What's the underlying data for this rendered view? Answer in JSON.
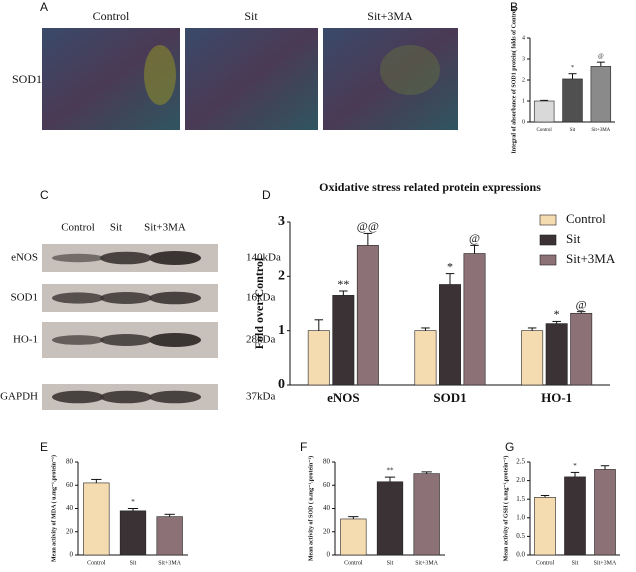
{
  "panel_letters": [
    "A",
    "B",
    "C",
    "D",
    "E",
    "F",
    "G"
  ],
  "panel_a": {
    "columns": [
      "Control",
      "Sit",
      "Sit+3MA"
    ],
    "rows": [
      "SOD1"
    ]
  },
  "panel_c": {
    "columns": [
      "Control",
      "Sit",
      "Sit+3MA"
    ],
    "rows": [
      {
        "name": "eNOS",
        "size": "140kDa"
      },
      {
        "name": "SOD1",
        "size": "16kDa"
      },
      {
        "name": "HO-1",
        "size": "28kDa"
      },
      {
        "name": "GAPDH",
        "size": "37kDa"
      }
    ]
  },
  "chart_data": [
    {
      "type": "bar",
      "ylabel": "Integral of absorbance of SOD1 protein( folds of Control)",
      "categories": [
        "Control",
        "Sit",
        "Sit+3MA"
      ],
      "values": [
        1,
        2.05,
        2.65
      ],
      "errors": [
        0.03,
        0.25,
        0.2
      ],
      "annotations": [
        null,
        "*",
        "@"
      ],
      "colors": [
        "#d9d9d9",
        "#505050",
        "#8a8a8a"
      ],
      "ylim": [
        0,
        4
      ],
      "yticks": [
        0,
        1,
        2,
        3,
        4
      ]
    },
    {
      "type": "grouped_bar",
      "title": "Oxidative stress related protein expressions",
      "ylabel": "Fold over Control",
      "categories": [
        "eNOS",
        "SOD1",
        "HO-1"
      ],
      "series": [
        {
          "name": "Control",
          "color": "#f5dcb0",
          "values": [
            1,
            1,
            1
          ],
          "errors": [
            0.2,
            0.05,
            0.05
          ],
          "annotations": [
            null,
            null,
            null
          ]
        },
        {
          "name": "Sit",
          "color": "#3a3234",
          "values": [
            1.65,
            1.85,
            1.13
          ],
          "errors": [
            0.08,
            0.2,
            0.04
          ],
          "annotations": [
            "**",
            "*",
            "*"
          ]
        },
        {
          "name": "Sit+3MA",
          "color": "#8c7276",
          "values": [
            2.57,
            2.42,
            1.32
          ],
          "errors": [
            0.22,
            0.15,
            0.03
          ],
          "annotations": [
            "@@",
            "@",
            "@"
          ]
        }
      ],
      "ylim": [
        0,
        3
      ],
      "yticks": [
        0,
        1,
        2,
        3
      ],
      "legend": "upper right"
    },
    {
      "type": "bar",
      "ylabel": "Mean activity of MDA ( u.mg⁻¹.protein⁻¹)",
      "categories": [
        "Control",
        "Sit",
        "Sit+3MA"
      ],
      "values": [
        62,
        38,
        33
      ],
      "errors": [
        3,
        2,
        2
      ],
      "annotations": [
        null,
        "*",
        null
      ],
      "colors": [
        "#f5dcb0",
        "#3a3234",
        "#8c7276"
      ],
      "ylim": [
        0,
        80
      ],
      "yticks": [
        0,
        20,
        40,
        60,
        80
      ]
    },
    {
      "type": "bar",
      "ylabel": "Mean activity of SOD ( u.mg⁻¹.protein⁻¹)",
      "categories": [
        "Control",
        "Sit",
        "Sit+3MA"
      ],
      "values": [
        31,
        63,
        70
      ],
      "errors": [
        2,
        4,
        1.5
      ],
      "annotations": [
        null,
        "**",
        null
      ],
      "colors": [
        "#f5dcb0",
        "#3a3234",
        "#8c7276"
      ],
      "ylim": [
        0,
        80
      ],
      "yticks": [
        0,
        20,
        40,
        60,
        80
      ]
    },
    {
      "type": "bar",
      "ylabel": "Mean activity of GSH ( u.mg⁻¹.protein⁻¹)",
      "categories": [
        "Control",
        "Sit",
        "Sit+3MA"
      ],
      "values": [
        1.55,
        2.1,
        2.3
      ],
      "errors": [
        0.05,
        0.12,
        0.1
      ],
      "annotations": [
        null,
        "*",
        null
      ],
      "colors": [
        "#f5dcb0",
        "#3a3234",
        "#8c7276"
      ],
      "ylim": [
        0,
        2.5
      ],
      "yticks": [
        {
          "value": 0,
          "label": "0.0"
        },
        0.5,
        {
          "value": 1,
          "label": "1.0"
        },
        1.5,
        {
          "value": 2,
          "label": "2.0"
        },
        2.5
      ]
    }
  ]
}
